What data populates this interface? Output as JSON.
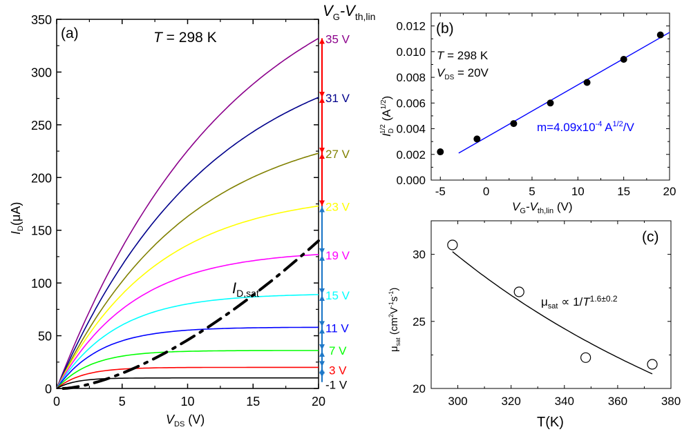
{
  "chart_data": [
    {
      "panel": "a",
      "type": "line",
      "panel_label": "(a)",
      "annotation_T": {
        "var": "T",
        "text": " = 298 K"
      },
      "xlabel": {
        "main": "V",
        "sub": "DS",
        "rest": " (V)"
      },
      "ylabel": {
        "main": "I",
        "sub": "D",
        "rest": "(μA)"
      },
      "xlim": [
        0,
        20
      ],
      "ylim": [
        0,
        350
      ],
      "xticks": [
        0,
        5,
        10,
        15,
        20
      ],
      "yticks": [
        0,
        50,
        100,
        150,
        200,
        250,
        300,
        350
      ],
      "legend_title": {
        "main": "V",
        "sub1": "G",
        "mid": "-V",
        "sub2": "th,lin"
      },
      "series": [
        {
          "name": "35 V",
          "color": "#8B008B",
          "isat": 332,
          "k": 0.075
        },
        {
          "name": "31 V",
          "color": "#00008B",
          "isat": 276,
          "k": 0.085
        },
        {
          "name": "27 V",
          "color": "#808000",
          "isat": 223,
          "k": 0.1
        },
        {
          "name": "23 V",
          "color": "#FFFF00",
          "isat": 173,
          "k": 0.13
        },
        {
          "name": "19 V",
          "color": "#FF00FF",
          "isat": 127,
          "k": 0.17
        },
        {
          "name": "15 V",
          "color": "#00FFFF",
          "isat": 89,
          "k": 0.22
        },
        {
          "name": "11 V",
          "color": "#0000FF",
          "isat": 58,
          "k": 0.3
        },
        {
          "name": "7 V",
          "color": "#00FF00",
          "isat": 36,
          "k": 0.38
        },
        {
          "name": "3 V",
          "color": "#FF0000",
          "isat": 20,
          "k": 0.5
        },
        {
          "name": "-1 V",
          "color": "#000000",
          "isat": 10,
          "k": 0.7
        }
      ],
      "isat_curve": {
        "label_main": "I",
        "label_sub": "D,sat",
        "x": [
          0.5,
          20
        ],
        "y": [
          0,
          140
        ],
        "style": "dash-dot"
      },
      "arrow_colors": {
        "red": "#FF0000",
        "blue": "#1E78C8"
      }
    },
    {
      "panel": "b",
      "type": "scatter",
      "panel_label": "(b)",
      "xlabel": {
        "main": "V",
        "sub1": "G",
        "mid": "-V",
        "sub2": "th,lin",
        "rest": " (V)"
      },
      "ylabel": {
        "main": "I",
        "sub": "D",
        "sup": "1/2",
        "rest": " (A",
        "rest_sup": "1/2",
        "close": ")"
      },
      "xlim": [
        -6,
        20
      ],
      "ylim": [
        0,
        0.013
      ],
      "xticks": [
        -5,
        0,
        5,
        10,
        15,
        20
      ],
      "yticks": [
        "0.000",
        "0.002",
        "0.004",
        "0.006",
        "0.008",
        "0.010",
        "0.012"
      ],
      "points": {
        "x": [
          -5,
          -1,
          3,
          7,
          11,
          15,
          19
        ],
        "y": [
          0.0022,
          0.0032,
          0.0044,
          0.006,
          0.0076,
          0.0094,
          0.0113
        ]
      },
      "fit": {
        "x": [
          -3,
          20
        ],
        "y": [
          0.0021,
          0.0115
        ],
        "color": "#0000FF"
      },
      "annotations": {
        "T": {
          "var": "T",
          "text": " = 298 K"
        },
        "VDS": {
          "var": "V",
          "sub": "DS",
          "text": " = 20V"
        },
        "slope": {
          "text": "m=4.09x10",
          "sup": "-4",
          "unit": " A",
          "unit_sup": "1/2",
          "tail": "/V"
        }
      }
    },
    {
      "panel": "c",
      "type": "scatter",
      "panel_label": "(c)",
      "xlabel": "T(K)",
      "ylabel": {
        "main": "μ",
        "sub": "sat",
        "rest": " (cm",
        "sup1": "2",
        "mid": "V",
        "sup2": "-1",
        "s": "s",
        "sup3": "-1",
        "close": ")"
      },
      "xlim": [
        290,
        380
      ],
      "ylim": [
        20,
        32.5
      ],
      "xticks": [
        300,
        320,
        340,
        360,
        380
      ],
      "yticks": [
        20,
        25,
        30
      ],
      "points": {
        "x": [
          298,
          323,
          348,
          373
        ],
        "y": [
          30.7,
          27.2,
          22.3,
          21.8
        ]
      },
      "fit": {
        "x0": 298,
        "x1": 373,
        "y0": 30.2,
        "exponent": 1.6
      },
      "annotation": {
        "mu": "μ",
        "sub": "sat",
        "prop": " ∝ 1/",
        "var": "T",
        "sup": "1.6±0.2"
      }
    }
  ]
}
